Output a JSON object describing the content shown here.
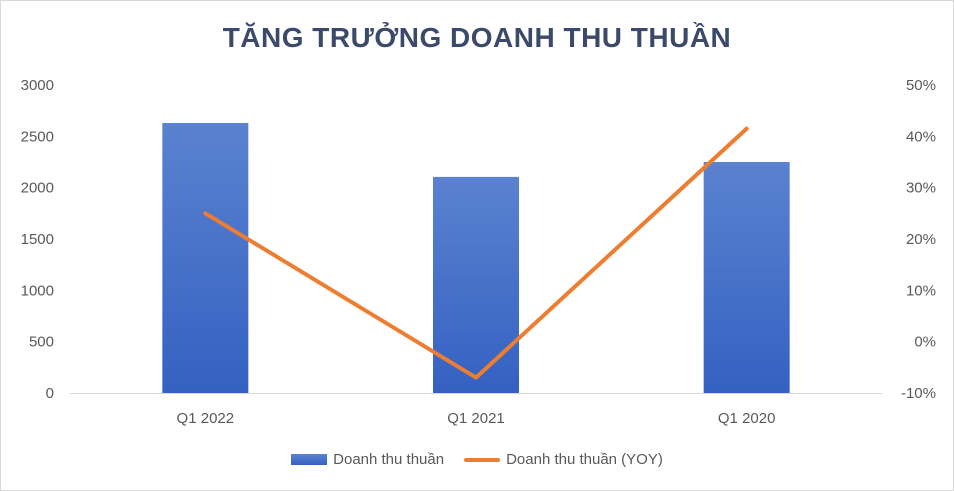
{
  "chart_data": {
    "type": "bar",
    "title": "TĂNG TRƯỞNG DOANH THU THUẦN",
    "categories": [
      "Q1 2022",
      "Q1 2021",
      "Q1 2020"
    ],
    "series": [
      {
        "name": "Doanh thu thuần",
        "type": "bar",
        "axis": "left",
        "values": [
          2630,
          2105,
          2250
        ]
      },
      {
        "name": "Doanh thu thuần (YOY)",
        "type": "line",
        "axis": "right",
        "values": [
          25,
          -7,
          41.5
        ]
      }
    ],
    "y_left": {
      "ylim": [
        0,
        3000
      ],
      "ticks": [
        "0",
        "500",
        "1000",
        "1500",
        "2000",
        "2500",
        "3000"
      ]
    },
    "y_right": {
      "ylim": [
        -10,
        50
      ],
      "ticks": [
        "-10%",
        "0%",
        "10%",
        "20%",
        "30%",
        "40%",
        "50%"
      ]
    },
    "grid": false,
    "legend_position": "bottom",
    "colors": {
      "bar_top": "#5b82d0",
      "bar_bottom": "#3461c2",
      "line": "#ed7d31",
      "title": "#3b4a6b"
    }
  }
}
